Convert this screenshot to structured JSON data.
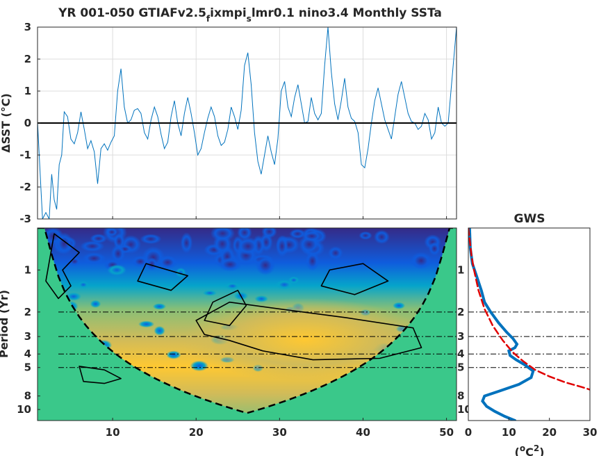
{
  "chart_data": [
    {
      "type": "line",
      "title": "YR 001-050 GTIAFv2.5_fixmpi_slmr0.1 nino3.4 Monthly SSTa",
      "title_parts": {
        "a": "YR 001-050 GTIAFv2.5",
        "sub1": "f",
        "b": "ixmpi",
        "sub2": "s",
        "c": "lmr0.1 nino3.4 Monthly SSTa"
      },
      "ylabel": "ΔSST (°C)",
      "xlabel": "",
      "xlim": [
        1,
        51.2
      ],
      "ylim": [
        -3,
        3
      ],
      "yticks": [
        "-3",
        "-2",
        "-1",
        "0",
        "1",
        "2",
        "3"
      ],
      "xticks": [
        10,
        20,
        30,
        40,
        50
      ],
      "grid": true,
      "series": [
        {
          "color": "#0072BD",
          "points": [
            [
              1.0,
              0.05
            ],
            [
              1.3,
              -1.5
            ],
            [
              1.6,
              -3.0
            ],
            [
              2.0,
              -2.8
            ],
            [
              2.4,
              -3.0
            ],
            [
              2.7,
              -1.6
            ],
            [
              3.0,
              -2.4
            ],
            [
              3.3,
              -2.7
            ],
            [
              3.6,
              -1.3
            ],
            [
              3.9,
              -1.0
            ],
            [
              4.2,
              0.35
            ],
            [
              4.6,
              0.2
            ],
            [
              5.0,
              -0.5
            ],
            [
              5.4,
              -0.65
            ],
            [
              5.8,
              -0.3
            ],
            [
              6.2,
              0.35
            ],
            [
              6.6,
              -0.2
            ],
            [
              7.0,
              -0.8
            ],
            [
              7.4,
              -0.55
            ],
            [
              7.8,
              -0.9
            ],
            [
              8.2,
              -1.9
            ],
            [
              8.6,
              -0.8
            ],
            [
              9.0,
              -0.65
            ],
            [
              9.4,
              -0.85
            ],
            [
              9.8,
              -0.6
            ],
            [
              10.2,
              -0.4
            ],
            [
              10.6,
              1.0
            ],
            [
              11.0,
              1.7
            ],
            [
              11.4,
              0.5
            ],
            [
              11.8,
              0.0
            ],
            [
              12.2,
              0.1
            ],
            [
              12.6,
              0.4
            ],
            [
              13.0,
              0.45
            ],
            [
              13.4,
              0.3
            ],
            [
              13.8,
              -0.3
            ],
            [
              14.2,
              -0.5
            ],
            [
              14.6,
              0.1
            ],
            [
              15.0,
              0.5
            ],
            [
              15.4,
              0.2
            ],
            [
              15.8,
              -0.35
            ],
            [
              16.2,
              -0.8
            ],
            [
              16.6,
              -0.6
            ],
            [
              17.0,
              0.2
            ],
            [
              17.4,
              0.7
            ],
            [
              17.8,
              0.0
            ],
            [
              18.2,
              -0.4
            ],
            [
              18.6,
              0.3
            ],
            [
              19.0,
              0.8
            ],
            [
              19.4,
              0.3
            ],
            [
              19.8,
              -0.3
            ],
            [
              20.2,
              -1.0
            ],
            [
              20.6,
              -0.8
            ],
            [
              21.0,
              -0.3
            ],
            [
              21.4,
              0.15
            ],
            [
              21.8,
              0.5
            ],
            [
              22.2,
              0.2
            ],
            [
              22.6,
              -0.4
            ],
            [
              23.0,
              -0.7
            ],
            [
              23.4,
              -0.6
            ],
            [
              23.8,
              -0.2
            ],
            [
              24.2,
              0.5
            ],
            [
              24.6,
              0.2
            ],
            [
              25.0,
              -0.2
            ],
            [
              25.4,
              0.4
            ],
            [
              25.8,
              1.8
            ],
            [
              26.2,
              2.2
            ],
            [
              26.6,
              1.2
            ],
            [
              27.0,
              -0.3
            ],
            [
              27.4,
              -1.2
            ],
            [
              27.8,
              -1.6
            ],
            [
              28.2,
              -1.0
            ],
            [
              28.6,
              -0.4
            ],
            [
              29.0,
              -0.9
            ],
            [
              29.4,
              -1.3
            ],
            [
              29.8,
              -0.5
            ],
            [
              30.2,
              1.0
            ],
            [
              30.6,
              1.3
            ],
            [
              31.0,
              0.5
            ],
            [
              31.4,
              0.2
            ],
            [
              31.8,
              0.8
            ],
            [
              32.2,
              1.2
            ],
            [
              32.6,
              0.6
            ],
            [
              33.0,
              0.0
            ],
            [
              33.4,
              0.05
            ],
            [
              33.8,
              0.8
            ],
            [
              34.2,
              0.3
            ],
            [
              34.6,
              0.1
            ],
            [
              35.0,
              0.3
            ],
            [
              35.4,
              1.8
            ],
            [
              35.8,
              3.0
            ],
            [
              36.2,
              1.6
            ],
            [
              36.6,
              0.6
            ],
            [
              37.0,
              0.1
            ],
            [
              37.4,
              0.7
            ],
            [
              37.8,
              1.4
            ],
            [
              38.2,
              0.5
            ],
            [
              38.6,
              0.15
            ],
            [
              39.0,
              0.05
            ],
            [
              39.4,
              -0.3
            ],
            [
              39.8,
              -1.3
            ],
            [
              40.2,
              -1.4
            ],
            [
              40.6,
              -0.8
            ],
            [
              41.0,
              0.0
            ],
            [
              41.4,
              0.7
            ],
            [
              41.8,
              1.1
            ],
            [
              42.2,
              0.6
            ],
            [
              42.6,
              0.1
            ],
            [
              43.0,
              -0.2
            ],
            [
              43.4,
              -0.5
            ],
            [
              43.8,
              0.2
            ],
            [
              44.2,
              0.9
            ],
            [
              44.6,
              1.3
            ],
            [
              45.0,
              0.8
            ],
            [
              45.4,
              0.3
            ],
            [
              45.8,
              0.05
            ],
            [
              46.2,
              0.0
            ],
            [
              46.6,
              -0.2
            ],
            [
              47.0,
              -0.1
            ],
            [
              47.4,
              0.3
            ],
            [
              47.8,
              0.1
            ],
            [
              48.2,
              -0.5
            ],
            [
              48.6,
              -0.3
            ],
            [
              49.0,
              0.5
            ],
            [
              49.4,
              0.0
            ],
            [
              49.8,
              -0.1
            ],
            [
              50.2,
              0.0
            ],
            [
              50.6,
              1.2
            ],
            [
              51.0,
              2.4
            ],
            [
              51.2,
              3.0
            ]
          ]
        },
        {
          "color": "#000000",
          "points": [
            [
              1.0,
              0
            ],
            [
              51.2,
              0
            ]
          ]
        }
      ]
    },
    {
      "type": "heatmap",
      "title": "",
      "xlabel": "",
      "ylabel": "Period (Yr)",
      "xlim": [
        1,
        51.2
      ],
      "ylim": [
        0.5,
        12
      ],
      "yscale": "log",
      "xticks": [
        10,
        20,
        30,
        40,
        50
      ],
      "yticks": [
        1,
        2,
        3,
        4,
        5,
        8,
        10
      ],
      "period_reference_lines": [
        2,
        3,
        4,
        5
      ],
      "cone_of_influence": "dashed black",
      "colormap": [
        "#352a87",
        "#0f5cdd",
        "#1481d6",
        "#06a4ca",
        "#2eb7a4",
        "#87bf77",
        "#d1bb59",
        "#fec832",
        "#f9fb0e"
      ],
      "outside_cone_color": "#3ac88a",
      "high_power_periods": [
        {
          "period_range": [
            2,
            5
          ],
          "time_range": [
            20,
            46
          ],
          "level": "high"
        },
        {
          "period_range": [
            5,
            7
          ],
          "time_range": [
            7,
            12
          ],
          "level": "very high"
        },
        {
          "period_range": [
            0.5,
            0.8
          ],
          "time_range": [
            1,
            51
          ],
          "level": "low"
        }
      ]
    },
    {
      "type": "line",
      "title": "GWS",
      "xlabel": "(°C²)",
      "xlabel_parts": {
        "a": "(",
        "sup1": "o",
        "b": "C",
        "sup2": "2",
        "c": ")"
      },
      "ylabel": "",
      "xlim": [
        0,
        30
      ],
      "ylim": [
        0.5,
        12
      ],
      "yscale": "log",
      "xticks": [
        0,
        10,
        20,
        30
      ],
      "yticks": [
        1,
        2,
        3,
        4,
        5,
        8,
        10
      ],
      "reference_lines": [
        2,
        3,
        4,
        5
      ],
      "series": [
        {
          "color": "#0072BD",
          "points": [
            [
              0.3,
              0.5
            ],
            [
              0.5,
              0.7
            ],
            [
              1.0,
              0.9
            ],
            [
              2.0,
              1.1
            ],
            [
              3.2,
              1.4
            ],
            [
              4.0,
              1.7
            ],
            [
              5.5,
              2.0
            ],
            [
              7.5,
              2.4
            ],
            [
              9.5,
              2.8
            ],
            [
              11.0,
              3.1
            ],
            [
              12.0,
              3.4
            ],
            [
              11.5,
              3.6
            ],
            [
              10.0,
              3.8
            ],
            [
              10.3,
              4.1
            ],
            [
              11.8,
              4.4
            ],
            [
              14.0,
              4.8
            ],
            [
              16.0,
              5.3
            ],
            [
              15.5,
              5.9
            ],
            [
              12.5,
              6.6
            ],
            [
              7.5,
              7.4
            ],
            [
              4.0,
              8.0
            ],
            [
              3.5,
              8.7
            ],
            [
              4.5,
              9.5
            ],
            [
              6.5,
              10.3
            ],
            [
              9.0,
              11.2
            ],
            [
              11.5,
              12.0
            ]
          ]
        },
        {
          "color": "#e00000",
          "points": [
            [
              0.0,
              0.5
            ],
            [
              0.8,
              0.8
            ],
            [
              1.4,
              1.0
            ],
            [
              2.5,
              1.4
            ],
            [
              4.0,
              1.9
            ],
            [
              6.0,
              2.5
            ],
            [
              8.5,
              3.2
            ],
            [
              11.0,
              3.9
            ],
            [
              13.5,
              4.5
            ],
            [
              16.5,
              5.2
            ],
            [
              20.0,
              5.8
            ],
            [
              24.0,
              6.4
            ],
            [
              28.0,
              6.9
            ],
            [
              30.0,
              7.2
            ]
          ]
        }
      ]
    }
  ]
}
